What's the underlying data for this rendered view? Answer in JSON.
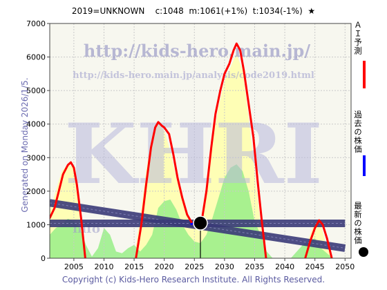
{
  "header": {
    "title": "2019=UNKNOWN    c:1048  m:1061(+1%)  t:1034(-1%)  ★"
  },
  "footer": {
    "copyright": "Copyright (c) Kids-Hero Research Institute. All Rights Reserved."
  },
  "watermark": {
    "url_main": "http://kids-hero.main.jp/",
    "url_sub": "http://kids-hero.main.jp/analysis/code2019.html",
    "logo": "KHRI",
    "info": "info"
  },
  "legend": {
    "ai_forecast": "ＡＩ予測",
    "past_price": "過去の株価",
    "latest_price": "最新の株価"
  },
  "colors": {
    "ai_forecast": "#ff0000",
    "past_price": "#0000ff",
    "latest_marker": "#000000",
    "trend_band": "#3a3a78",
    "green_area": "#99ee88",
    "yellow_area": "#ffffaa",
    "plot_bg": "#f6f6ee"
  },
  "chart_data": {
    "type": "line",
    "title": "2019=UNKNOWN    c:1048  m:1061(+1%)  t:1034(-1%)  ★",
    "ylabel": "Generated on Monday 2026/1/5.",
    "xlim": [
      2001,
      2051
    ],
    "ylim": [
      0,
      7000
    ],
    "x_ticks": [
      2005,
      2010,
      2015,
      2020,
      2025,
      2030,
      2035,
      2040,
      2045,
      2050
    ],
    "y_ticks": [
      0,
      1000,
      2000,
      3000,
      4000,
      5000,
      6000,
      7000
    ],
    "grid": true,
    "stats": {
      "c": 1048,
      "m": 1061,
      "m_change": "+1%",
      "t": 1034,
      "t_change": "-1%"
    },
    "series": [
      {
        "name": "ＡＩ予測",
        "color": "#ff0000",
        "segments": [
          [
            [
              2001,
              1200
            ],
            [
              2001.8,
              1500
            ],
            [
              2002.5,
              2000
            ],
            [
              2003.2,
              2500
            ],
            [
              2004,
              2780
            ],
            [
              2004.5,
              2860
            ],
            [
              2005,
              2700
            ],
            [
              2005.5,
              2200
            ],
            [
              2006.2,
              1200
            ],
            [
              2006.9,
              0
            ]
          ],
          [
            [
              2015.3,
              0
            ],
            [
              2016.2,
              1000
            ],
            [
              2017.0,
              2200
            ],
            [
              2017.8,
              3300
            ],
            [
              2018.5,
              3900
            ],
            [
              2019.0,
              4060
            ],
            [
              2019.6,
              3950
            ],
            [
              2020.0,
              3900
            ],
            [
              2020.8,
              3700
            ],
            [
              2021.5,
              3100
            ],
            [
              2022.2,
              2400
            ],
            [
              2023.0,
              1800
            ],
            [
              2023.8,
              1300
            ],
            [
              2024.6,
              1050
            ],
            [
              2025.0,
              1000
            ]
          ],
          [
            [
              2026.3,
              1200
            ],
            [
              2027.0,
              2000
            ],
            [
              2027.8,
              3300
            ],
            [
              2028.5,
              4300
            ],
            [
              2029.3,
              5000
            ],
            [
              2030.0,
              5500
            ],
            [
              2030.8,
              5800
            ],
            [
              2031.5,
              6200
            ],
            [
              2032.0,
              6400
            ],
            [
              2032.6,
              6200
            ],
            [
              2033.2,
              5600
            ],
            [
              2034.0,
              4600
            ],
            [
              2034.8,
              3600
            ],
            [
              2035.5,
              2300
            ],
            [
              2036.2,
              1100
            ],
            [
              2036.9,
              0
            ]
          ],
          [
            [
              2043.4,
              0
            ],
            [
              2044.2,
              500
            ],
            [
              2045.0,
              900
            ],
            [
              2045.7,
              1130
            ],
            [
              2046.3,
              1000
            ],
            [
              2047.0,
              600
            ],
            [
              2047.8,
              0
            ]
          ]
        ]
      },
      {
        "name": "過去の株価",
        "color": "#0000ff",
        "segments": [
          [
            [
              2024.5,
              1020
            ],
            [
              2025.0,
              1050
            ],
            [
              2025.3,
              1030
            ]
          ]
        ]
      },
      {
        "name": "最新の株価",
        "color": "#000000",
        "points": [
          [
            2026,
            1048
          ]
        ]
      },
      {
        "name": "trend_band_sloped",
        "color": "#3a3a78",
        "points": [
          [
            2001,
            1650
          ],
          [
            2050,
            300
          ]
        ]
      },
      {
        "name": "trend_band_horizontal",
        "color": "#3a3a78",
        "points": [
          [
            2001,
            1040
          ],
          [
            2050,
            1040
          ]
        ]
      },
      {
        "name": "green_area",
        "color": "#99ee88",
        "points": [
          [
            2001,
            700
          ],
          [
            2002,
            900
          ],
          [
            2003,
            1000
          ],
          [
            2004,
            1180
          ],
          [
            2005,
            1100
          ],
          [
            2006,
            900
          ],
          [
            2007,
            400
          ],
          [
            2008,
            50
          ],
          [
            2009,
            300
          ],
          [
            2010,
            900
          ],
          [
            2011,
            700
          ],
          [
            2012,
            200
          ],
          [
            2013,
            150
          ],
          [
            2014,
            300
          ],
          [
            2015,
            400
          ],
          [
            2016,
            200
          ],
          [
            2017,
            400
          ],
          [
            2018,
            700
          ],
          [
            2019,
            1500
          ],
          [
            2020,
            1700
          ],
          [
            2021,
            1750
          ],
          [
            2022,
            1450
          ],
          [
            2023,
            1000
          ],
          [
            2024,
            700
          ],
          [
            2025,
            500
          ],
          [
            2026,
            450
          ],
          [
            2027,
            700
          ],
          [
            2028,
            1200
          ],
          [
            2029,
            1800
          ],
          [
            2030,
            2400
          ],
          [
            2031,
            2700
          ],
          [
            2032,
            2800
          ],
          [
            2033,
            2600
          ],
          [
            2034,
            2000
          ],
          [
            2035,
            1100
          ],
          [
            2036,
            700
          ],
          [
            2037,
            200
          ],
          [
            2038,
            0
          ],
          [
            2041,
            0
          ],
          [
            2042,
            200
          ],
          [
            2043,
            400
          ],
          [
            2044,
            500
          ],
          [
            2045,
            600
          ],
          [
            2046,
            300
          ],
          [
            2047,
            150
          ],
          [
            2048,
            0
          ],
          [
            2050,
            0
          ]
        ]
      },
      {
        "name": "yellow_area",
        "color": "#ffffaa",
        "points": [
          [
            2001,
            1400
          ],
          [
            2002,
            2000
          ],
          [
            2003,
            2600
          ],
          [
            2004,
            2800
          ],
          [
            2005,
            2700
          ],
          [
            2006,
            1200
          ],
          [
            2007,
            0
          ],
          [
            2015,
            0
          ],
          [
            2016,
            1200
          ],
          [
            2017,
            2600
          ],
          [
            2018,
            3700
          ],
          [
            2019,
            4000
          ],
          [
            2020,
            3800
          ],
          [
            2021,
            3200
          ],
          [
            2022,
            2400
          ],
          [
            2023,
            1800
          ],
          [
            2024,
            1200
          ],
          [
            2025,
            1000
          ],
          [
            2026,
            1100
          ],
          [
            2027,
            2200
          ],
          [
            2028,
            3500
          ],
          [
            2029,
            4500
          ],
          [
            2030,
            5300
          ],
          [
            2031,
            5700
          ],
          [
            2032,
            6100
          ],
          [
            2033,
            5600
          ],
          [
            2034,
            4200
          ],
          [
            2035,
            2600
          ],
          [
            2036,
            1000
          ],
          [
            2037,
            0
          ],
          [
            2043,
            0
          ],
          [
            2044,
            600
          ],
          [
            2045,
            1100
          ],
          [
            2046,
            1000
          ],
          [
            2047,
            300
          ],
          [
            2048,
            0
          ]
        ]
      }
    ]
  }
}
